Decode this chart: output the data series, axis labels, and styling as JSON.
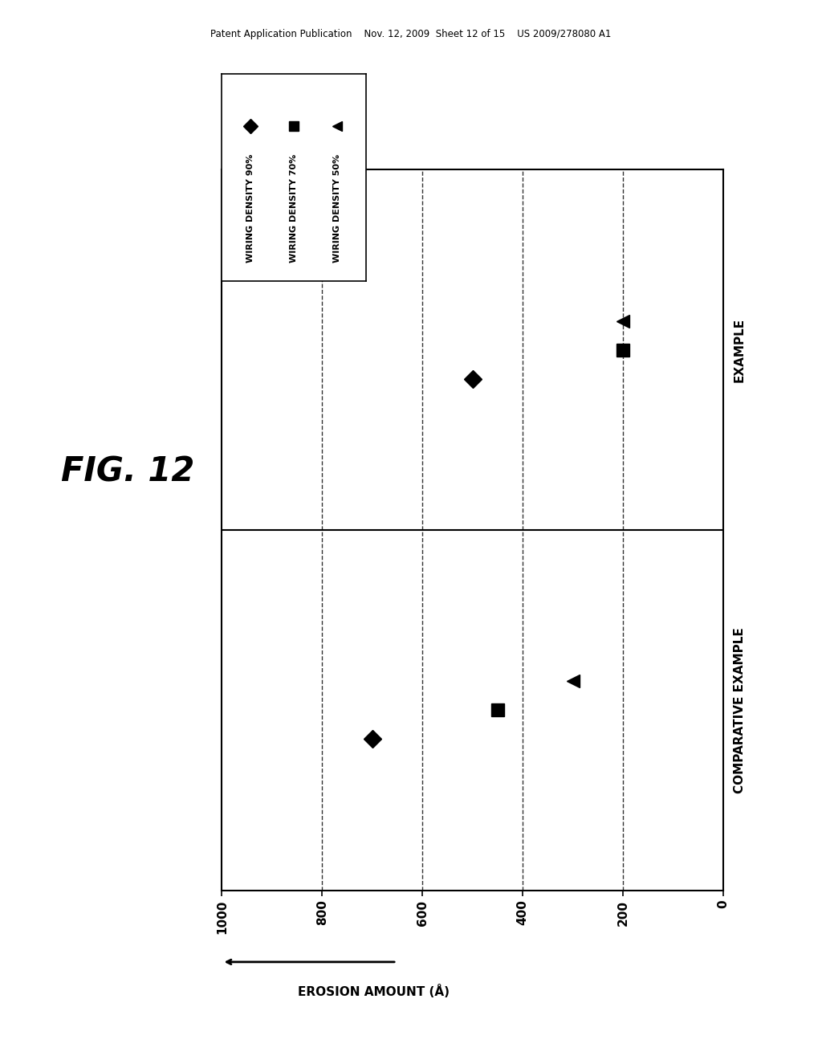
{
  "header_text": "Patent Application Publication    Nov. 12, 2009  Sheet 12 of 15    US 2009/278080 A1",
  "figure_title": "FIG. 12",
  "xlabel": "EROSION AMOUNT (Å)",
  "categories": [
    "COMPARATIVE EXAMPLE",
    "EXAMPLE"
  ],
  "series": [
    {
      "label": "WIRING DENSITY 90%",
      "marker": "D",
      "color": "black",
      "values": [
        700,
        500
      ]
    },
    {
      "label": "WIRING DENSITY 70%",
      "marker": "s",
      "color": "black",
      "values": [
        450,
        200
      ]
    },
    {
      "label": "WIRING DENSITY 50%",
      "marker": "<",
      "color": "black",
      "values": [
        300,
        200
      ]
    }
  ],
  "xlim": [
    1000,
    0
  ],
  "xticks": [
    1000,
    800,
    600,
    400,
    200,
    0
  ],
  "background_color": "white",
  "legend_items": [
    {
      "marker": "D",
      "label": "WIRING DENSITY 90%"
    },
    {
      "marker": "s",
      "label": "WIRING DENSITY 70%"
    },
    {
      "marker": "<",
      "label": "WIRING DENSITY 50%"
    }
  ]
}
